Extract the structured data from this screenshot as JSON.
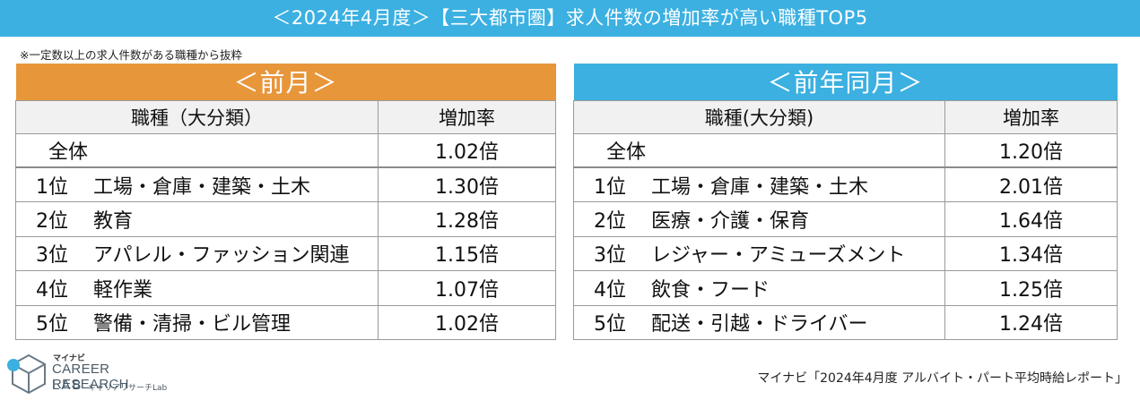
{
  "header": {
    "title": "＜2024年4月度＞【三大都市圏】求人件数の増加率が高い職種TOP5",
    "note": "※一定数以上の求人件数がある職種から抜粋"
  },
  "tables": [
    {
      "caption": "＜前月＞",
      "col_category": "職種（大分類）",
      "col_rate": "増加率",
      "total": {
        "label": "全体",
        "value": "1.02倍"
      },
      "rows": [
        {
          "rank": "1位",
          "category": "工場・倉庫・建築・土木",
          "value": "1.30倍"
        },
        {
          "rank": "2位",
          "category": "教育",
          "value": "1.28倍"
        },
        {
          "rank": "3位",
          "category": "アパレル・ファッション関連",
          "value": "1.15倍"
        },
        {
          "rank": "4位",
          "category": "軽作業",
          "value": "1.07倍"
        },
        {
          "rank": "5位",
          "category": "警備・清掃・ビル管理",
          "value": "1.02倍"
        }
      ]
    },
    {
      "caption": "＜前年同月＞",
      "col_category": "職種(大分類)",
      "col_rate": "増加率",
      "total": {
        "label": "全体",
        "value": "1.20倍"
      },
      "rows": [
        {
          "rank": "1位",
          "category": "工場・倉庫・建築・土木",
          "value": "2.01倍"
        },
        {
          "rank": "2位",
          "category": "医療・介護・保育",
          "value": "1.64倍"
        },
        {
          "rank": "3位",
          "category": "レジャー・アミューズメント",
          "value": "1.34倍"
        },
        {
          "rank": "4位",
          "category": "飲食・フード",
          "value": "1.25倍"
        },
        {
          "rank": "5位",
          "category": "配送・引越・ドライバー",
          "value": "1.24倍"
        }
      ]
    }
  ],
  "chart_data": [
    {
      "type": "table",
      "title": "＜前月＞",
      "columns": [
        "職種（大分類）",
        "増加率"
      ],
      "rows": [
        [
          "全体",
          "1.02倍"
        ],
        [
          "1位 工場・倉庫・建築・土木",
          "1.30倍"
        ],
        [
          "2位 教育",
          "1.28倍"
        ],
        [
          "3位 アパレル・ファッション関連",
          "1.15倍"
        ],
        [
          "4位 軽作業",
          "1.07倍"
        ],
        [
          "5位 警備・清掃・ビル管理",
          "1.02倍"
        ]
      ]
    },
    {
      "type": "table",
      "title": "＜前年同月＞",
      "columns": [
        "職種(大分類)",
        "増加率"
      ],
      "rows": [
        [
          "全体",
          "1.20倍"
        ],
        [
          "1位 工場・倉庫・建築・土木",
          "2.01倍"
        ],
        [
          "2位 医療・介護・保育",
          "1.64倍"
        ],
        [
          "3位 レジャー・アミューズメント",
          "1.34倍"
        ],
        [
          "4位 飲食・フード",
          "1.25倍"
        ],
        [
          "5位 配送・引越・ドライバー",
          "1.24倍"
        ]
      ]
    }
  ],
  "logo": {
    "brand_small": "マイナビ",
    "line1": "CAREER RESEARCH",
    "line2": "LAB",
    "line2_sub": "キャリアリサーチLab",
    "colors": {
      "cube": "#6a7a86",
      "dot": "#3bb0e1"
    }
  },
  "footer": {
    "source": "マイナビ「2024年4月度 アルバイト・パート平均時給レポート」"
  },
  "colors": {
    "banner": "#3bb0e1",
    "prev_caption": "#e8963a",
    "yoy_caption": "#3bb0e1",
    "header_row": "#f1f1f1"
  }
}
